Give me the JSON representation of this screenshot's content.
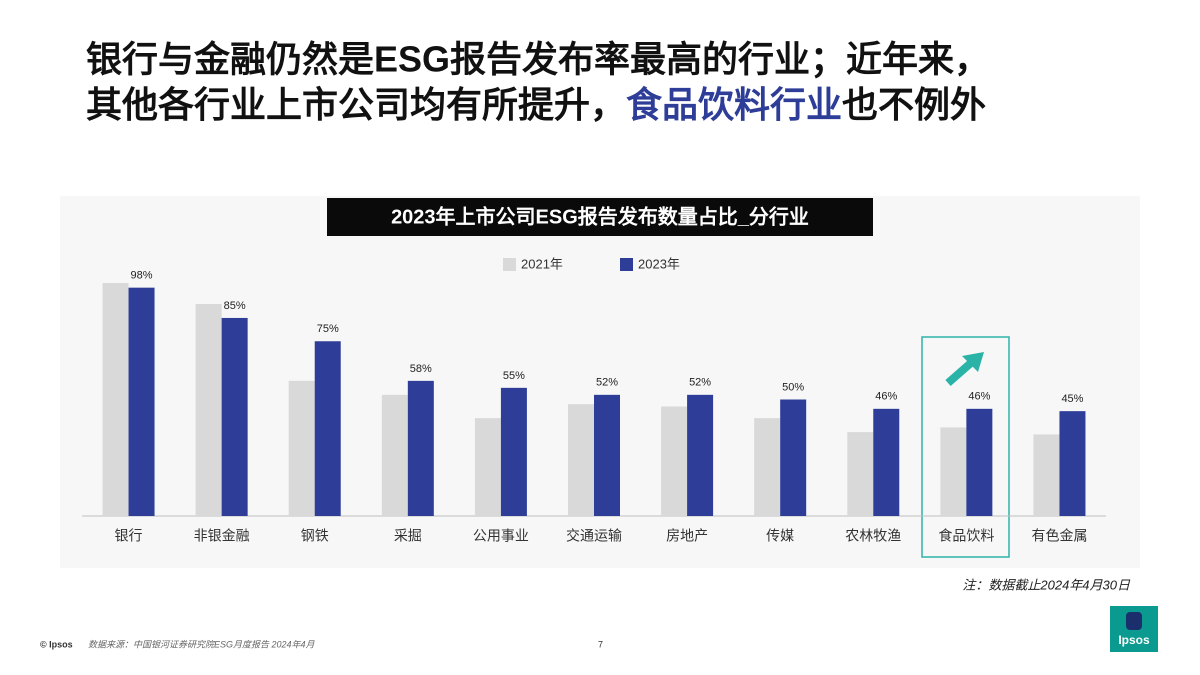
{
  "title": {
    "line1": "银行与金融仍然是ESG报告发布率最高的行业；近年来，",
    "line2_before": "其他各行业上市公司均有所提升，",
    "line2_highlight": "食品饮料行业",
    "line2_after": "也不例外"
  },
  "chart_data": {
    "type": "bar",
    "title": "2023年上市公司ESG报告发布数量占比_分行业",
    "categories": [
      "银行",
      "非银金融",
      "钢铁",
      "采掘",
      "公用事业",
      "交通运输",
      "房地产",
      "传媒",
      "农林牧渔",
      "食品饮料",
      "有色金属"
    ],
    "series": [
      {
        "name": "2021年",
        "color": "#d9d9d9",
        "values": [
          100,
          91,
          58,
          52,
          42,
          48,
          47,
          42,
          36,
          38,
          35
        ]
      },
      {
        "name": "2023年",
        "color": "#2e3e98",
        "values": [
          98,
          85,
          75,
          58,
          55,
          52,
          52,
          50,
          46,
          46,
          45
        ],
        "value_labels": [
          "98%",
          "85%",
          "75%",
          "58%",
          "55%",
          "52%",
          "52%",
          "50%",
          "46%",
          "46%",
          "45%"
        ]
      }
    ],
    "legend": "top"
  },
  "note": "注：数据截止2024年4月30日",
  "footer": {
    "copyright": "© Ipsos",
    "source": "数据来源：中国银河证券研究院ESG月度报告 2024年4月",
    "page": "7",
    "logo": "Ipsos"
  }
}
